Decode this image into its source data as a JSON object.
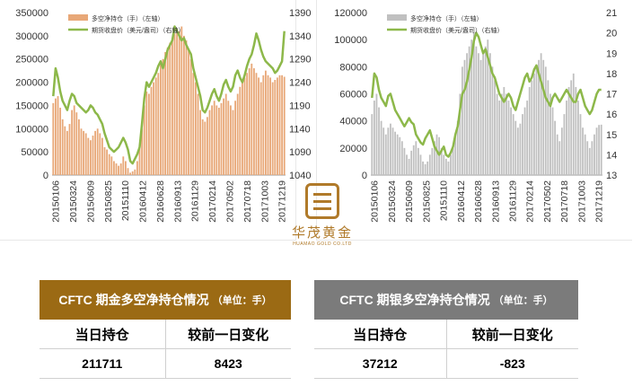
{
  "chart_data": [
    {
      "type": "bar",
      "name": "gold",
      "legend": [
        "多空净持仓（手）（左轴）",
        "期货收盘价（美元/盎司）（右轴）"
      ],
      "x_labels": [
        "20150106",
        "20150324",
        "20150609",
        "20150825",
        "20151110",
        "20160412",
        "20160628",
        "20160913",
        "20161129",
        "20170214",
        "20170502",
        "20170718",
        "20171003",
        "20171219"
      ],
      "ylim_left": [
        0,
        350000
      ],
      "yticks_left": [
        "0",
        "50000",
        "100000",
        "150000",
        "200000",
        "250000",
        "300000",
        "350000"
      ],
      "ylim_right": [
        1040,
        1390
      ],
      "yticks_right": [
        "1040",
        "1090",
        "1140",
        "1190",
        "1240",
        "1290",
        "1340",
        "1390"
      ],
      "bar_color": "#e8a878",
      "line_color": "#8db84a",
      "series": [
        {
          "values": [
            155000,
            165000,
            170000,
            145000,
            120000,
            105000,
            95000,
            110000,
            140000,
            150000,
            135000,
            120000,
            100000,
            95000,
            90000,
            80000,
            75000,
            85000,
            95000,
            100000,
            90000,
            80000,
            60000,
            55000,
            45000,
            40000,
            30000,
            25000,
            20000,
            25000,
            40000,
            30000,
            15000,
            5000,
            8000,
            12000,
            30000,
            60000,
            100000,
            150000,
            180000,
            175000,
            190000,
            200000,
            210000,
            220000,
            240000,
            250000,
            265000,
            275000,
            285000,
            295000,
            305000,
            315000,
            310000,
            320000,
            300000,
            290000,
            270000,
            250000,
            220000,
            200000,
            175000,
            140000,
            120000,
            115000,
            125000,
            140000,
            150000,
            160000,
            150000,
            145000,
            155000,
            165000,
            175000,
            160000,
            150000,
            140000,
            160000,
            175000,
            190000,
            200000,
            210000,
            220000,
            230000,
            240000,
            230000,
            220000,
            210000,
            200000,
            215000,
            225000,
            215000,
            210000,
            200000,
            205000,
            210000,
            215000,
            215000,
            211711
          ]
        },
        {
          "values": [
            1210,
            1270,
            1250,
            1220,
            1200,
            1190,
            1180,
            1200,
            1215,
            1210,
            1195,
            1190,
            1185,
            1180,
            1175,
            1180,
            1190,
            1185,
            1175,
            1170,
            1160,
            1150,
            1130,
            1115,
            1100,
            1095,
            1090,
            1095,
            1100,
            1110,
            1120,
            1110,
            1095,
            1070,
            1065,
            1075,
            1085,
            1100,
            1150,
            1205,
            1240,
            1230,
            1240,
            1250,
            1260,
            1275,
            1285,
            1270,
            1290,
            1310,
            1320,
            1330,
            1360,
            1350,
            1340,
            1330,
            1335,
            1320,
            1310,
            1300,
            1270,
            1250,
            1230,
            1210,
            1180,
            1175,
            1185,
            1200,
            1215,
            1225,
            1210,
            1200,
            1215,
            1235,
            1245,
            1230,
            1220,
            1230,
            1255,
            1265,
            1250,
            1240,
            1255,
            1275,
            1290,
            1300,
            1320,
            1345,
            1330,
            1310,
            1295,
            1285,
            1280,
            1275,
            1270,
            1260,
            1265,
            1275,
            1285,
            1350
          ]
        }
      ]
    },
    {
      "type": "bar",
      "name": "silver",
      "legend": [
        "多空净持仓（手）（左轴）",
        "期货收盘价（美元/盎司）（右轴）"
      ],
      "x_labels": [
        "20150106",
        "20150324",
        "20150609",
        "20150825",
        "20151110",
        "20160412",
        "20160628",
        "20160913",
        "20161129",
        "20170214",
        "20170502",
        "20170718",
        "20171003",
        "20171219"
      ],
      "ylim_left": [
        0,
        120000
      ],
      "yticks_left": [
        "0",
        "20000",
        "40000",
        "60000",
        "80000",
        "100000",
        "120000"
      ],
      "ylim_right": [
        13,
        21
      ],
      "yticks_right": [
        "13",
        "14",
        "15",
        "16",
        "17",
        "18",
        "19",
        "20",
        "21"
      ],
      "bar_color": "#c0c0c0",
      "line_color": "#8db84a",
      "series": [
        {
          "values": [
            45000,
            55000,
            60000,
            50000,
            40000,
            35000,
            30000,
            35000,
            38000,
            35000,
            32000,
            30000,
            28000,
            25000,
            20000,
            15000,
            12000,
            18000,
            22000,
            25000,
            20000,
            15000,
            10000,
            8000,
            10000,
            15000,
            20000,
            25000,
            30000,
            28000,
            20000,
            15000,
            12000,
            10000,
            15000,
            20000,
            30000,
            40000,
            60000,
            80000,
            85000,
            90000,
            95000,
            100000,
            105000,
            95000,
            90000,
            85000,
            90000,
            95000,
            100000,
            90000,
            80000,
            70000,
            60000,
            55000,
            60000,
            65000,
            60000,
            55000,
            50000,
            45000,
            40000,
            35000,
            38000,
            45000,
            50000,
            55000,
            65000,
            70000,
            75000,
            80000,
            85000,
            90000,
            85000,
            80000,
            70000,
            60000,
            50000,
            40000,
            30000,
            25000,
            35000,
            45000,
            55000,
            65000,
            70000,
            75000,
            65000,
            55000,
            45000,
            35000,
            30000,
            25000,
            20000,
            25000,
            30000,
            35000,
            37000,
            37212
          ]
        },
        {
          "values": [
            16.8,
            18.0,
            17.8,
            17.2,
            16.8,
            16.6,
            16.4,
            16.9,
            17.0,
            16.6,
            16.2,
            16.0,
            15.8,
            15.6,
            15.4,
            15.6,
            15.8,
            15.6,
            15.5,
            15.0,
            14.8,
            14.6,
            14.5,
            14.8,
            15.0,
            15.2,
            14.8,
            14.4,
            14.2,
            14.0,
            14.2,
            14.4,
            14.0,
            13.9,
            14.1,
            14.4,
            15.0,
            15.4,
            16.2,
            17.0,
            17.2,
            17.6,
            18.2,
            18.8,
            19.6,
            20.0,
            19.8,
            19.4,
            19.0,
            19.2,
            18.8,
            18.4,
            18.0,
            17.8,
            17.4,
            17.0,
            16.8,
            16.6,
            16.8,
            17.0,
            16.8,
            16.4,
            16.2,
            16.6,
            17.0,
            17.4,
            17.8,
            18.0,
            17.6,
            17.8,
            18.2,
            18.4,
            18.0,
            17.6,
            17.2,
            16.8,
            16.6,
            16.4,
            16.8,
            17.0,
            16.8,
            16.6,
            16.8,
            17.0,
            17.2,
            17.0,
            16.8,
            16.6,
            16.6,
            17.0,
            17.2,
            16.8,
            16.4,
            16.2,
            16.0,
            16.2,
            16.6,
            17.0,
            17.2,
            17.2
          ]
        }
      ]
    }
  ],
  "logo": {
    "name": "华茂黄金",
    "sub": "HUAMAO GOLD CO.LTD"
  },
  "gold_table": {
    "title": "CFTC 期金多空净持仓情况",
    "unit": "（单位：手）",
    "headers": [
      "当日持仓",
      "较前一日变化"
    ],
    "values": [
      "211711",
      "8423"
    ]
  },
  "silver_table": {
    "title": "CFTC 期银多空净持仓情况",
    "unit": "（单位：手）",
    "headers": [
      "当日持仓",
      "较前一日变化"
    ],
    "values": [
      "37212",
      "-823"
    ]
  }
}
